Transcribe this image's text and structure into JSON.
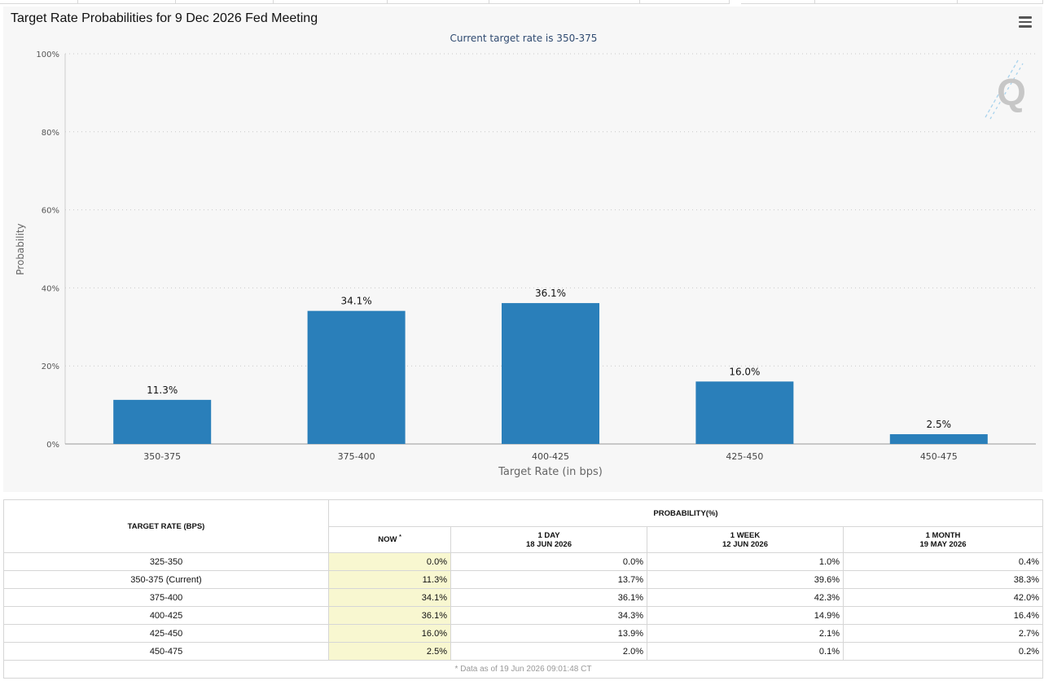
{
  "chart_data": {
    "type": "bar",
    "title": "Target Rate Probabilities for 9 Dec 2026 Fed Meeting",
    "subtitle": "Current target rate is 350-375",
    "xlabel": "Target Rate (in bps)",
    "ylabel": "Probability",
    "categories": [
      "350-375",
      "375-400",
      "400-425",
      "425-450",
      "450-475"
    ],
    "values": [
      11.3,
      34.1,
      36.1,
      16.0,
      2.5
    ],
    "data_labels": [
      "11.3%",
      "34.1%",
      "36.1%",
      "16.0%",
      "2.5%"
    ],
    "ylim": [
      0,
      100
    ],
    "y_ticks": [
      "0%",
      "20%",
      "40%",
      "60%",
      "80%",
      "100%"
    ],
    "grid": true,
    "bar_color": "#2a7fba"
  },
  "table": {
    "header_rate": "TARGET RATE (BPS)",
    "header_prob": "PROBABILITY(%)",
    "columns": [
      {
        "label": "NOW",
        "date": ""
      },
      {
        "label": "1 DAY",
        "date": "18 JUN 2026"
      },
      {
        "label": "1 WEEK",
        "date": "12 JUN 2026"
      },
      {
        "label": "1 MONTH",
        "date": "19 MAY 2026"
      }
    ],
    "now_marker": "*",
    "rows": [
      {
        "rate": "325-350",
        "now": "0.0%",
        "day": "0.0%",
        "week": "1.0%",
        "month": "0.4%"
      },
      {
        "rate": "350-375 (Current)",
        "now": "11.3%",
        "day": "13.7%",
        "week": "39.6%",
        "month": "38.3%"
      },
      {
        "rate": "375-400",
        "now": "34.1%",
        "day": "36.1%",
        "week": "42.3%",
        "month": "42.0%"
      },
      {
        "rate": "400-425",
        "now": "36.1%",
        "day": "34.3%",
        "week": "14.9%",
        "month": "16.4%"
      },
      {
        "rate": "425-450",
        "now": "16.0%",
        "day": "13.9%",
        "week": "2.1%",
        "month": "2.7%"
      },
      {
        "rate": "450-475",
        "now": "2.5%",
        "day": "2.0%",
        "week": "0.1%",
        "month": "0.2%"
      }
    ],
    "footnote": "* Data as of 19 Jun 2026 09:01:48 CT"
  },
  "icons": {
    "menu": "hamburger-menu-icon",
    "watermark": "quikstrike-logo"
  }
}
